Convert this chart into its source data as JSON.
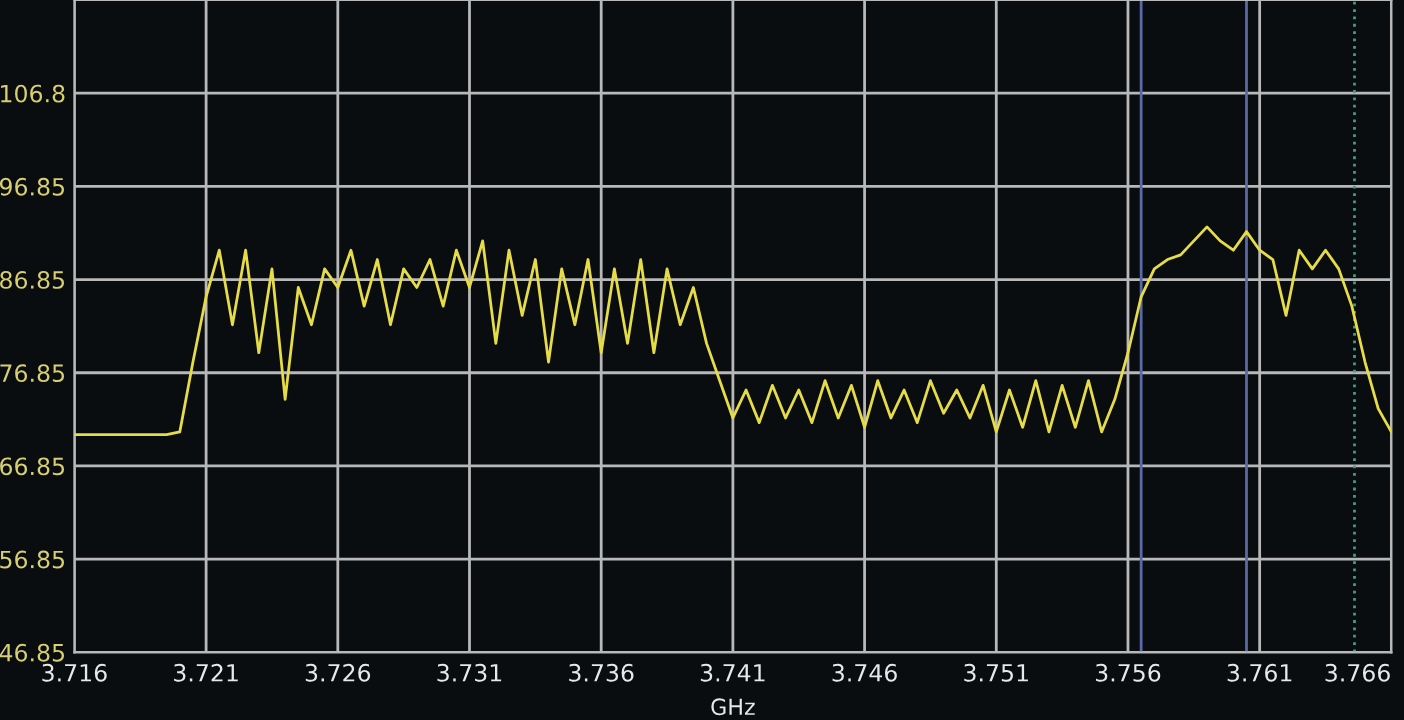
{
  "chart_data": {
    "type": "line",
    "xlabel": "GHz",
    "xlim": [
      3.716,
      3.766
    ],
    "ylim": [
      46.85,
      116.85
    ],
    "xticks": [
      3.716,
      3.721,
      3.726,
      3.731,
      3.736,
      3.741,
      3.746,
      3.751,
      3.756,
      3.761,
      3.766
    ],
    "yticks": [
      46.85,
      56.85,
      66.85,
      76.85,
      86.85,
      96.85,
      {
        "value": 106.85,
        "label": "106.8"
      }
    ],
    "grid": true,
    "legend": false,
    "marker": "none",
    "line_style": "solid",
    "ref_lines": [
      {
        "axis": "x",
        "value": 3.7565,
        "color": "#5a6aa8",
        "line_style": "solid"
      },
      {
        "axis": "x",
        "value": 3.7605,
        "color": "#5a6aa8",
        "line_style": "solid"
      },
      {
        "axis": "x",
        "value": 3.7646,
        "color": "#3fa080",
        "line_style": "dotted"
      }
    ],
    "series": [
      {
        "color": "#e6dc48",
        "x": [
          3.716,
          3.7165,
          3.717,
          3.7175,
          3.718,
          3.7185,
          3.719,
          3.7195,
          3.72,
          3.7205,
          3.721,
          3.7215,
          3.722,
          3.7225,
          3.723,
          3.7235,
          3.724,
          3.7245,
          3.725,
          3.7255,
          3.726,
          3.7265,
          3.727,
          3.7275,
          3.728,
          3.7285,
          3.729,
          3.7295,
          3.73,
          3.7305,
          3.731,
          3.7315,
          3.732,
          3.7325,
          3.733,
          3.7335,
          3.734,
          3.7345,
          3.735,
          3.7355,
          3.736,
          3.7365,
          3.737,
          3.7375,
          3.738,
          3.7385,
          3.739,
          3.7395,
          3.74,
          3.7405,
          3.741,
          3.7415,
          3.742,
          3.7425,
          3.743,
          3.7435,
          3.744,
          3.7445,
          3.745,
          3.7455,
          3.746,
          3.7465,
          3.747,
          3.7475,
          3.748,
          3.7485,
          3.749,
          3.7495,
          3.75,
          3.7505,
          3.751,
          3.7515,
          3.752,
          3.7525,
          3.753,
          3.7535,
          3.754,
          3.7545,
          3.755,
          3.7555,
          3.756,
          3.7565,
          3.757,
          3.7575,
          3.758,
          3.7585,
          3.759,
          3.7595,
          3.76,
          3.7605,
          3.761,
          3.7615,
          3.762,
          3.7625,
          3.763,
          3.7635,
          3.764,
          3.7645,
          3.765,
          3.7655,
          3.766
        ],
        "values": [
          70.2,
          70.2,
          70.2,
          70.2,
          70.2,
          70.2,
          70.2,
          70.2,
          70.5,
          78,
          85,
          90,
          82,
          90,
          79,
          88,
          74,
          86,
          82,
          88,
          86,
          90,
          84,
          89,
          82,
          88,
          86,
          89,
          84,
          90,
          86,
          91,
          80,
          90,
          83,
          89,
          78,
          88,
          82,
          89,
          79,
          88,
          80,
          89,
          79,
          88,
          82,
          86,
          80,
          76,
          72,
          75,
          71.5,
          75.5,
          72,
          75,
          71.5,
          76,
          72,
          75.5,
          71,
          76,
          72,
          75,
          71.5,
          76,
          72.5,
          75,
          72,
          75.5,
          70.5,
          75,
          71,
          76,
          70.5,
          75.5,
          71,
          76,
          70.5,
          74,
          79,
          85,
          88,
          89,
          89.5,
          91,
          92.5,
          91,
          90,
          92,
          90,
          89,
          83,
          90,
          88,
          90,
          88,
          84,
          78,
          73,
          70.5
        ]
      }
    ]
  }
}
